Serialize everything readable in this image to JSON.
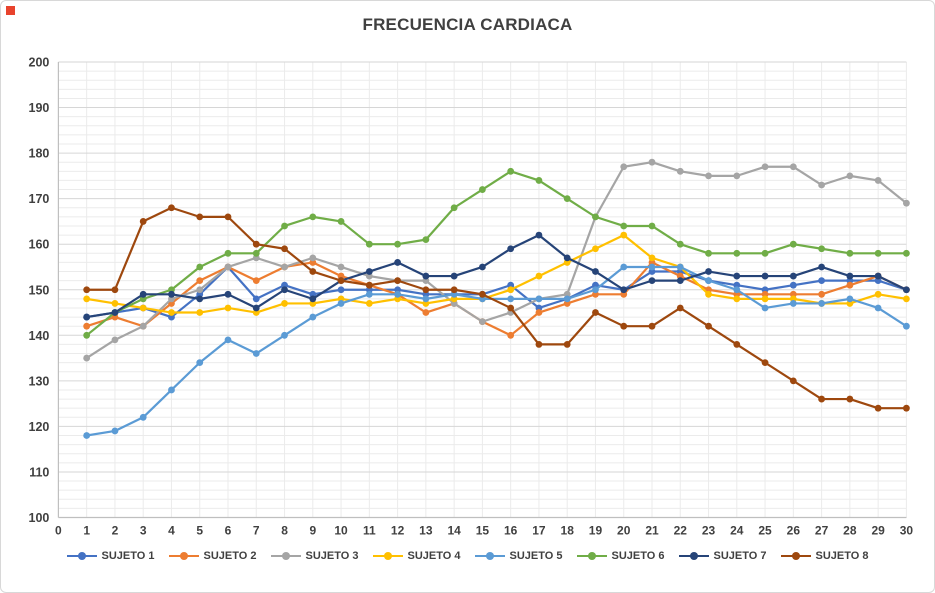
{
  "title": "FRECUENCIA CARDIACA",
  "corner_marker_color": "#e8432d",
  "axis": {
    "text_color": "#404040",
    "line_color": "#bfbfbf",
    "major_grid_color": "#d6d6d6",
    "minor_grid_color": "#ebebeb",
    "y_tick_labels": [
      "100",
      "110",
      "120",
      "130",
      "140",
      "150",
      "160",
      "170",
      "180",
      "190",
      "200"
    ],
    "x_tick_labels": [
      "0",
      "1",
      "2",
      "3",
      "4",
      "5",
      "6",
      "7",
      "8",
      "9",
      "10",
      "11",
      "12",
      "13",
      "14",
      "15",
      "16",
      "17",
      "18",
      "19",
      "20",
      "21",
      "22",
      "23",
      "24",
      "25",
      "26",
      "27",
      "28",
      "29",
      "30"
    ]
  },
  "chart_data": {
    "type": "line",
    "title": "FRECUENCIA CARDIACA",
    "xlabel": "",
    "ylabel": "",
    "x_range": [
      0,
      30
    ],
    "ylim": [
      100,
      200
    ],
    "y_major_step": 10,
    "y_minor_step": 2,
    "grid": true,
    "legend_position": "bottom",
    "x": [
      1,
      2,
      3,
      4,
      5,
      6,
      7,
      8,
      9,
      10,
      11,
      12,
      13,
      14,
      15,
      16,
      17,
      18,
      19,
      20,
      21,
      22,
      23,
      24,
      25,
      26,
      27,
      28,
      29,
      30
    ],
    "series": [
      {
        "name": "SUJETO 1",
        "color": "#4472C4",
        "values": [
          144,
          145,
          146,
          144,
          149,
          155,
          148,
          151,
          149,
          150,
          150,
          150,
          149,
          149,
          149,
          151,
          146,
          148,
          151,
          150,
          154,
          154,
          152,
          151,
          150,
          151,
          152,
          152,
          152,
          150
        ]
      },
      {
        "name": "SUJETO 2",
        "color": "#ED7D31",
        "values": [
          142,
          144,
          142,
          147,
          152,
          155,
          152,
          155,
          156,
          153,
          151,
          149,
          145,
          147,
          143,
          140,
          145,
          147,
          149,
          149,
          156,
          153,
          150,
          149,
          149,
          149,
          149,
          151,
          153,
          150
        ]
      },
      {
        "name": "SUJETO 3",
        "color": "#A5A5A5",
        "values": [
          135,
          139,
          142,
          148,
          150,
          155,
          157,
          155,
          157,
          155,
          153,
          152,
          152,
          147,
          143,
          145,
          148,
          149,
          166,
          177,
          178,
          176,
          175,
          175,
          177,
          177,
          173,
          175,
          174,
          169
        ]
      },
      {
        "name": "SUJETO 4",
        "color": "#FFC000",
        "values": [
          148,
          147,
          146,
          145,
          145,
          146,
          145,
          147,
          147,
          148,
          147,
          148,
          147,
          148,
          148,
          150,
          153,
          156,
          159,
          162,
          157,
          155,
          149,
          148,
          148,
          148,
          147,
          147,
          149,
          148
        ]
      },
      {
        "name": "SUJETO 5",
        "color": "#5B9BD5",
        "values": [
          118,
          119,
          122,
          128,
          134,
          139,
          136,
          140,
          144,
          147,
          149,
          149,
          148,
          149,
          148,
          148,
          148,
          148,
          150,
          155,
          155,
          155,
          152,
          150,
          146,
          147,
          147,
          148,
          146,
          142
        ]
      },
      {
        "name": "SUJETO 6",
        "color": "#70AD47",
        "values": [
          140,
          145,
          148,
          150,
          155,
          158,
          158,
          164,
          166,
          165,
          160,
          160,
          161,
          168,
          172,
          176,
          174,
          170,
          166,
          164,
          164,
          160,
          158,
          158,
          158,
          160,
          159,
          158,
          158,
          158
        ]
      },
      {
        "name": "SUJETO 7",
        "color": "#264478",
        "values": [
          144,
          145,
          149,
          149,
          148,
          149,
          146,
          150,
          148,
          152,
          154,
          156,
          153,
          153,
          155,
          159,
          162,
          157,
          154,
          150,
          152,
          152,
          154,
          153,
          153,
          153,
          155,
          153,
          153,
          150
        ]
      },
      {
        "name": "SUJETO 8",
        "color": "#9E480E",
        "values": [
          150,
          150,
          165,
          168,
          166,
          166,
          160,
          159,
          154,
          152,
          151,
          152,
          150,
          150,
          149,
          146,
          138,
          138,
          145,
          142,
          142,
          146,
          142,
          138,
          134,
          130,
          126,
          126,
          124,
          124
        ]
      }
    ]
  }
}
